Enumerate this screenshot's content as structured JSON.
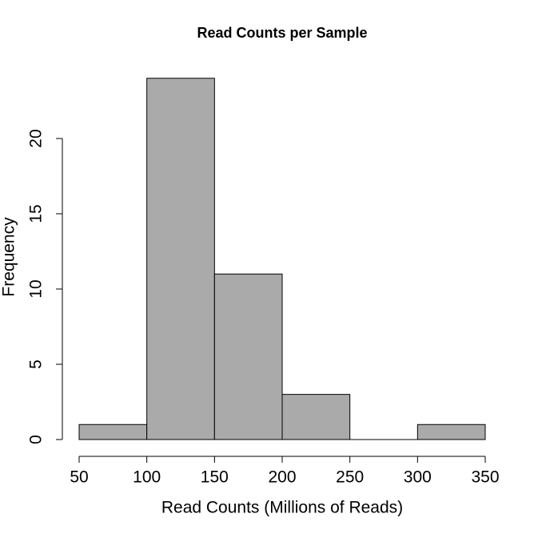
{
  "chart_data": {
    "type": "histogram",
    "title": "Read Counts per Sample",
    "x_label": "Read Counts (Millions of Reads)",
    "y_label": "Frequency",
    "bins": [
      50,
      100,
      150,
      200,
      250,
      300,
      350
    ],
    "values": [
      1,
      24,
      11,
      3,
      0,
      1
    ],
    "color": "#aaaaaa",
    "edge_color": "#000000",
    "xlim": [
      50,
      350
    ],
    "xticks": [
      50,
      100,
      150,
      200,
      250,
      300,
      350
    ],
    "ylim": [
      0,
      24
    ],
    "yticks": [
      0,
      5,
      10,
      15,
      20
    ]
  }
}
